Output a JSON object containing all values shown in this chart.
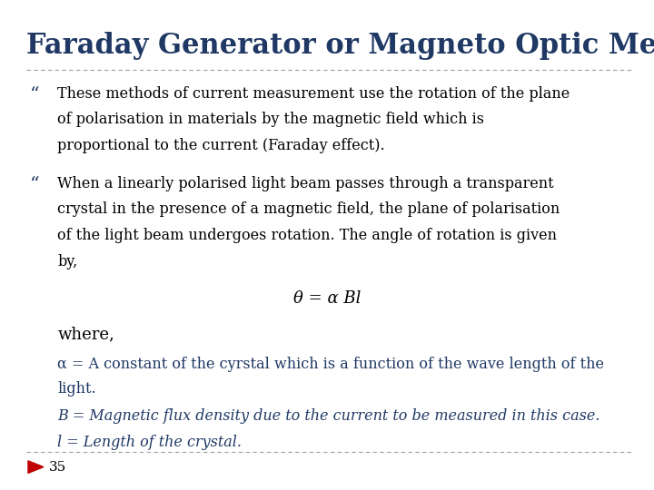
{
  "title": "Faraday Generator or Magneto Optic Method",
  "title_color": "#1F3864",
  "title_fontsize": 22,
  "bg_color": "#FFFFFF",
  "dashed_line_color": "#A0A0A0",
  "bullet_color": "#1F3864",
  "bullet1_lines": [
    "These methods of current measurement use the rotation of the plane",
    "of polarisation in materials by the magnetic field which is",
    "proportional to the current (Faraday effect)."
  ],
  "bullet2_lines": [
    "When a linearly polarised light beam passes through a transparent",
    "crystal in the presence of a magnetic field, the plane of polarisation",
    "of the light beam undergoes rotation. The angle of rotation is given",
    "by,"
  ],
  "equation": "θ = α Bl",
  "where_text": "where,",
  "alpha_line1": "α = A constant of the cyrstal which is a function of the wave length of the",
  "alpha_line2": "light.",
  "B_line": "B = Magnetic flux density due to the current to be measured in this case.",
  "l_line": "l = Length of the crystal.",
  "alpha_color": "#1F3864",
  "B_color": "#1F3864",
  "l_color": "#1F3864",
  "page_num": "35",
  "arrow_color": "#C00000",
  "text_fontsize": 11.5,
  "eq_fontsize": 13,
  "where_fontsize": 13
}
